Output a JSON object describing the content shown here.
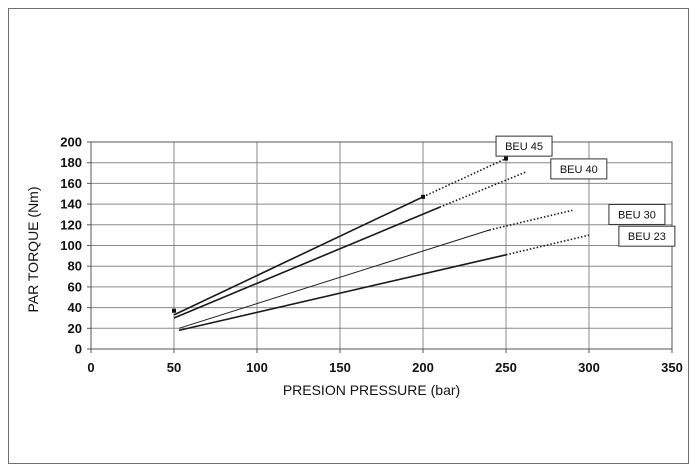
{
  "chart_data": {
    "type": "line",
    "title": "",
    "xlabel": "PRESION  PRESSURE (bar)",
    "ylabel": "PAR TORQUE (Nm)",
    "xlim": [
      0,
      350
    ],
    "ylim": [
      0,
      200
    ],
    "xticks": [
      0,
      50,
      100,
      150,
      200,
      250,
      300,
      350
    ],
    "yticks": [
      0,
      20,
      40,
      60,
      80,
      100,
      120,
      140,
      160,
      180,
      200
    ],
    "grid": true,
    "series": [
      {
        "name": "BEU 45",
        "style": "solid",
        "x": [
          50,
          200
        ],
        "y": [
          33,
          147
        ]
      },
      {
        "name": "BEU 45",
        "style": "dotted",
        "x": [
          200,
          250
        ],
        "y": [
          147,
          184
        ]
      },
      {
        "name": "BEU 40",
        "style": "solid",
        "x": [
          50,
          210
        ],
        "y": [
          30,
          137
        ]
      },
      {
        "name": "BEU 40",
        "style": "dotted",
        "x": [
          210,
          262
        ],
        "y": [
          137,
          171
        ]
      },
      {
        "name": "BEU 30",
        "style": "solid",
        "x": [
          53,
          240
        ],
        "y": [
          20,
          115
        ]
      },
      {
        "name": "BEU 30",
        "style": "dotted",
        "x": [
          240,
          290
        ],
        "y": [
          115,
          134
        ]
      },
      {
        "name": "BEU 23",
        "style": "solid",
        "x": [
          53,
          250
        ],
        "y": [
          18,
          91
        ]
      },
      {
        "name": "BEU 23",
        "style": "dotted",
        "x": [
          250,
          300
        ],
        "y": [
          91,
          110
        ]
      }
    ],
    "markers": [
      {
        "x": 50,
        "y": 37
      },
      {
        "x": 200,
        "y": 147
      },
      {
        "x": 250,
        "y": 184
      }
    ],
    "labels": [
      {
        "text": "BEU 45",
        "x": 244,
        "y": 196
      },
      {
        "text": "BEU 40",
        "x": 277,
        "y": 174
      },
      {
        "text": "BEU 30",
        "x": 312,
        "y": 130
      },
      {
        "text": "BEU 23",
        "x": 318,
        "y": 109
      }
    ]
  }
}
